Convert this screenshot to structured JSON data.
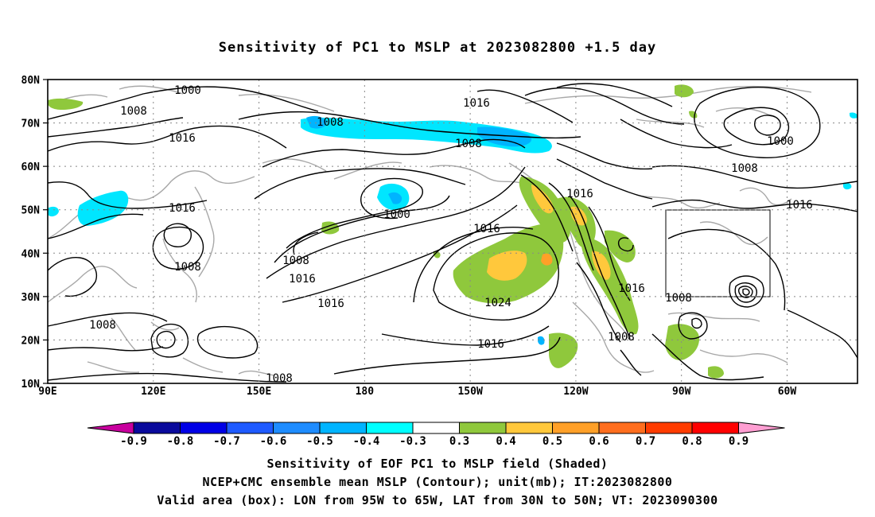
{
  "title": "Sensitivity of PC1 to MSLP at 2023082800 +1.5 day",
  "map": {
    "lat_labels": [
      "80N",
      "70N",
      "60N",
      "50N",
      "40N",
      "30N",
      "20N",
      "10N"
    ],
    "lon_labels": [
      "90E",
      "120E",
      "150E",
      "180",
      "150W",
      "120W",
      "90W",
      "60W"
    ],
    "lat_range": [
      10,
      80
    ],
    "lon_range_east": [
      90,
      320
    ],
    "valid_box": {
      "lon_w": -95,
      "lon_e": -65,
      "lat_s": 30,
      "lat_n": 50
    },
    "contour_labels": [
      "1000",
      "1008",
      "1008",
      "1016",
      "1016",
      "1016",
      "1008",
      "1000",
      "1016",
      "1008",
      "1016",
      "1024",
      "1016",
      "1008",
      "1016",
      "1008",
      "1016",
      "1008",
      "1000",
      "1008",
      "1016",
      "1008"
    ]
  },
  "colorbar": {
    "labels": [
      "-0.9",
      "-0.8",
      "-0.7",
      "-0.6",
      "-0.5",
      "-0.4",
      "-0.3",
      "0.3",
      "0.4",
      "0.5",
      "0.6",
      "0.7",
      "0.8",
      "0.9"
    ],
    "colors": [
      "#0a0a9c",
      "#0000e6",
      "#1e5aff",
      "#1e8cff",
      "#00b4ff",
      "#00ffff",
      "#ffffff",
      "#8fc83c",
      "#ffc83c",
      "#ffa028",
      "#ff6e1e",
      "#ff3c00",
      "#ff0000"
    ],
    "low_triangle_color": "#c8009e",
    "high_triangle_color": "#ff9ed2"
  },
  "caption": {
    "line1": "Sensitivity of EOF PC1 to MSLP field (Shaded)",
    "line2": "NCEP+CMC ensemble mean MSLP (Contour); unit(mb); IT:2023082800",
    "line3": "Valid area (box): LON from 95W to 65W, LAT from 30N to 50N; VT: 2023090300"
  }
}
